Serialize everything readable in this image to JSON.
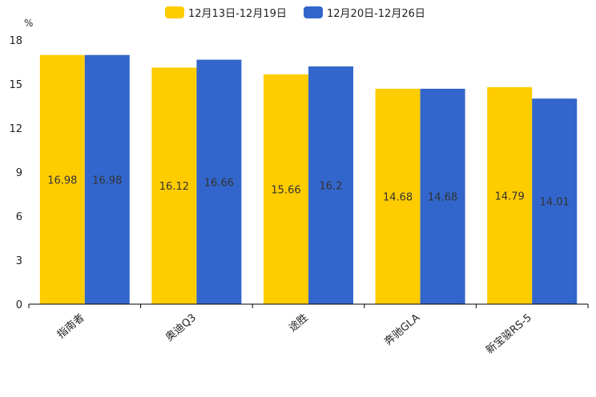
{
  "chart_data": {
    "type": "bar",
    "ylabel": "%",
    "ylim": [
      0,
      18
    ],
    "yticks": [
      0,
      3,
      6,
      9,
      12,
      15,
      18
    ],
    "grid": false,
    "legend_position": "top-center",
    "categories": [
      "指南者",
      "奥迪Q3",
      "途胜",
      "奔驰GLA",
      "新宝骏RS-5"
    ],
    "series": [
      {
        "name": "12月13日-12月19日",
        "color": "#FFCC00",
        "values": [
          16.98,
          16.12,
          15.66,
          14.68,
          14.79
        ]
      },
      {
        "name": "12月20日-12月26日",
        "color": "#3366CC",
        "values": [
          16.98,
          16.66,
          16.2,
          14.68,
          14.01
        ]
      }
    ]
  }
}
